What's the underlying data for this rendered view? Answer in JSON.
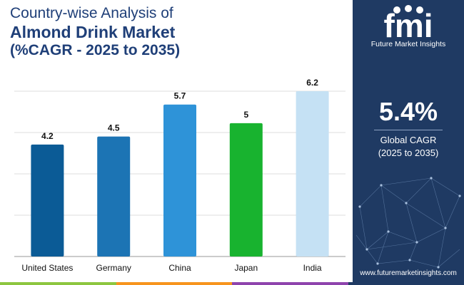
{
  "header": {
    "line1": "Country-wise Analysis of",
    "line2": "Almond Drink Market",
    "line3": "(%CAGR - 2025 to 2035)"
  },
  "chart_data": {
    "type": "bar",
    "categories": [
      "United States",
      "Germany",
      "China",
      "Japan",
      "India"
    ],
    "values": [
      4.2,
      4.5,
      5.7,
      5,
      6.2
    ],
    "value_labels": [
      "4.2",
      "4.5",
      "5.7",
      "5",
      "6.2"
    ],
    "colors": [
      "#0b5b96",
      "#1c74b4",
      "#2e93d8",
      "#18b32f",
      "#c5e1f4"
    ],
    "ylim": [
      0,
      6.2
    ],
    "grid": true,
    "legend": "none"
  },
  "side_panel": {
    "logo_letters": "fmi",
    "brand": "Future Market Insights",
    "kpi_value": "5.4%",
    "kpi_label_1": "Global CAGR",
    "kpi_label_2": "(2025 to 2035)",
    "website": "www.futuremarketinsights.com",
    "background": "#1f3a63"
  },
  "stripe_colors": [
    "#8dc63f",
    "#f7941d",
    "#8e44ad",
    "#1f3a63"
  ]
}
